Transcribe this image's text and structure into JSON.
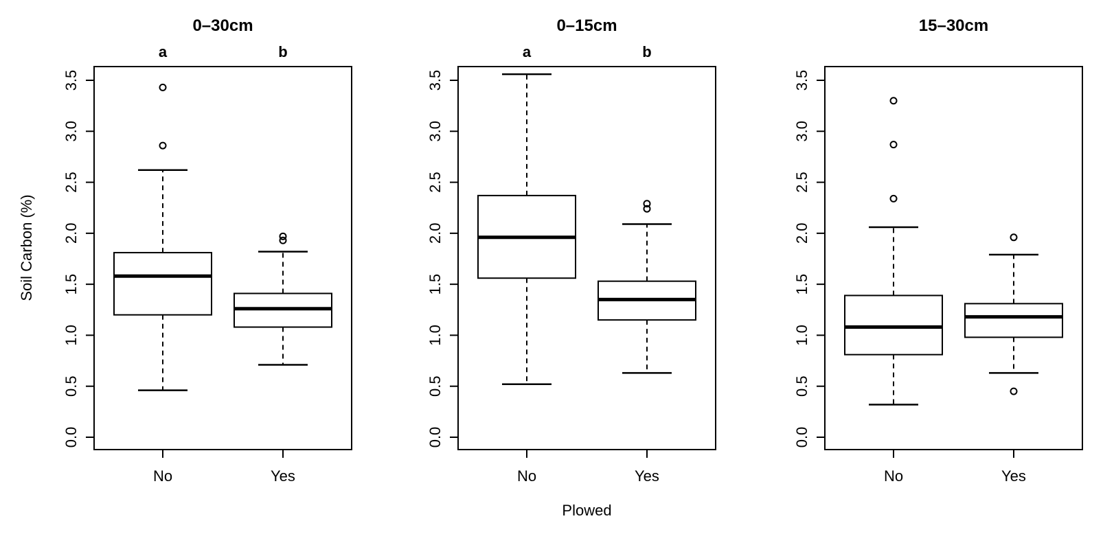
{
  "figure": {
    "background": "#FFFFFF",
    "foreground": "#000000"
  },
  "chart_data": {
    "type": "boxplot",
    "xlabel": "Plowed",
    "ylabel": "Soil Carbon (%)",
    "categories": [
      "No",
      "Yes"
    ],
    "y_ticks": [
      0.0,
      0.5,
      1.0,
      1.5,
      2.0,
      2.5,
      3.0,
      3.5
    ],
    "y_tick_labels": [
      "0.0",
      "0.5",
      "1.0",
      "1.5",
      "2.0",
      "2.5",
      "3.0",
      "3.5"
    ],
    "ylim": [
      -0.12,
      3.63
    ],
    "grid": false,
    "legend": "none",
    "panels": [
      {
        "title": "0–30cm",
        "groups": [
          {
            "category": "No",
            "letter": "a",
            "whisker_low": 0.46,
            "q1": 1.2,
            "median": 1.58,
            "q3": 1.81,
            "whisker_high": 2.62,
            "outliers": [
              2.86,
              3.43
            ]
          },
          {
            "category": "Yes",
            "letter": "b",
            "whisker_low": 0.71,
            "q1": 1.08,
            "median": 1.26,
            "q3": 1.41,
            "whisker_high": 1.82,
            "outliers": [
              1.93,
              1.97
            ]
          }
        ]
      },
      {
        "title": "0–15cm",
        "groups": [
          {
            "category": "No",
            "letter": "a",
            "whisker_low": 0.52,
            "q1": 1.56,
            "median": 1.96,
            "q3": 2.37,
            "whisker_high": 3.56,
            "outliers": []
          },
          {
            "category": "Yes",
            "letter": "b",
            "whisker_low": 0.63,
            "q1": 1.15,
            "median": 1.35,
            "q3": 1.53,
            "whisker_high": 2.09,
            "outliers": [
              2.24,
              2.29
            ]
          }
        ]
      },
      {
        "title": "15–30cm",
        "groups": [
          {
            "category": "No",
            "letter": "",
            "whisker_low": 0.32,
            "q1": 0.81,
            "median": 1.08,
            "q3": 1.39,
            "whisker_high": 2.06,
            "outliers": [
              2.34,
              2.87,
              3.3
            ]
          },
          {
            "category": "Yes",
            "letter": "",
            "whisker_low": 0.63,
            "q1": 0.98,
            "median": 1.18,
            "q3": 1.31,
            "whisker_high": 1.79,
            "outliers": [
              0.45,
              1.96
            ]
          }
        ]
      }
    ]
  }
}
